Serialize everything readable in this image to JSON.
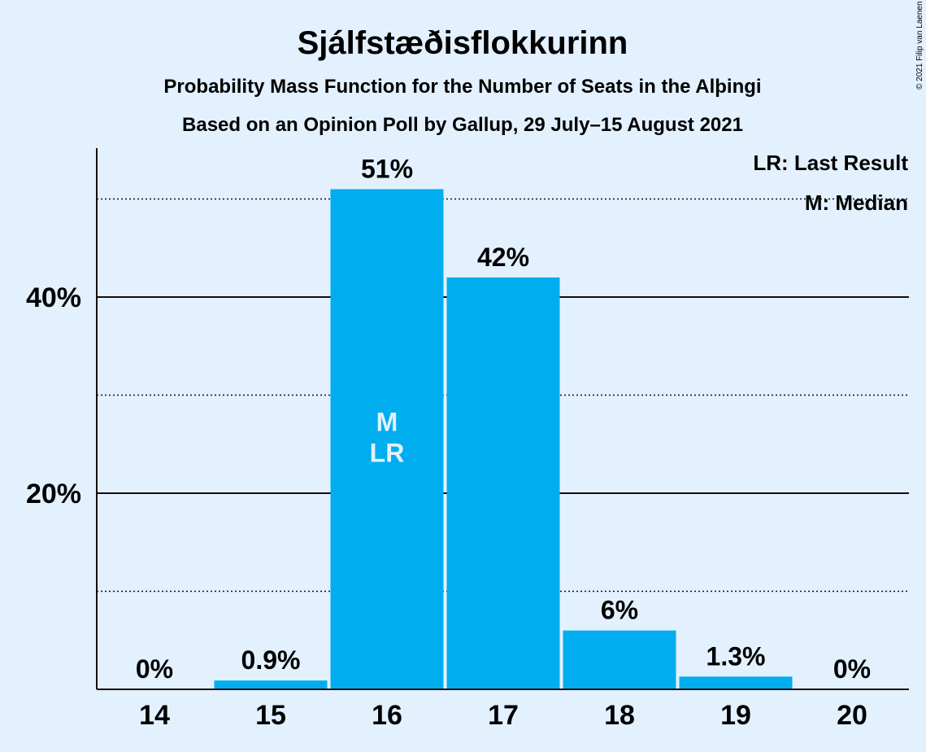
{
  "chart_data": {
    "type": "bar",
    "title": "Sjálfstæðisflokkurinn",
    "subtitle": "Probability Mass Function for the Number of Seats in the Alþingi",
    "subtitle2": "Based on an Opinion Poll by Gallup, 29 July–15 August 2021",
    "categories": [
      "14",
      "15",
      "16",
      "17",
      "18",
      "19",
      "20"
    ],
    "values": [
      0,
      0.9,
      51,
      42,
      6,
      1.3,
      0
    ],
    "value_labels": [
      "0%",
      "0.9%",
      "51%",
      "42%",
      "6%",
      "1.3%",
      "0%"
    ],
    "y_ticks": [
      {
        "value": 20,
        "label": "20%"
      },
      {
        "value": 40,
        "label": "40%"
      }
    ],
    "y_minor_gridlines": [
      10,
      30,
      50
    ],
    "ylim": [
      0,
      55
    ],
    "bar_color": "#00aeef",
    "median_category": "16",
    "last_result_category": "16",
    "markers": {
      "median": "M",
      "last_result": "LR"
    },
    "legend": {
      "last_result": "LR: Last Result",
      "median": "M: Median",
      "placement": "top-right"
    },
    "copyright": "© 2021 Filip van Laenen"
  }
}
